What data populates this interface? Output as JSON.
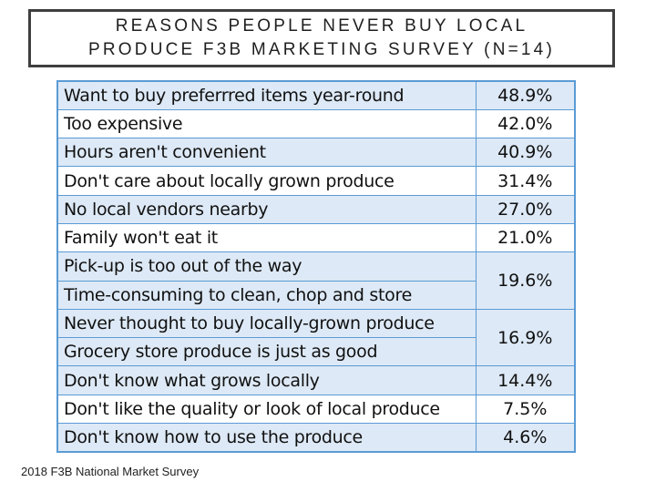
{
  "title": {
    "line1": "REASONS PEOPLE NEVER BUY LOCAL",
    "line2": "PRODUCE F3B MARKETING SURVEY (N=14)"
  },
  "rows": [
    {
      "reason": "Want to buy  preferrred items year-round",
      "pct": "48.9%"
    },
    {
      "reason": "Too expensive",
      "pct": "42.0%"
    },
    {
      "reason": "Hours aren't convenient",
      "pct": "40.9%"
    },
    {
      "reason": "Don't care about locally grown produce",
      "pct": "31.4%"
    },
    {
      "reason": "No local vendors nearby",
      "pct": "27.0%"
    },
    {
      "reason": "Family won't eat it",
      "pct": "21.0%"
    },
    {
      "reason": "Pick-up is too out of the way",
      "pct": "19.6%"
    },
    {
      "reason": "Time-consuming to clean, chop and store"
    },
    {
      "reason": "Never thought to buy locally-grown produce",
      "pct": "16.9%"
    },
    {
      "reason": "Grocery store produce is just as good"
    },
    {
      "reason": "Don't know what grows locally",
      "pct": "14.4%"
    },
    {
      "reason": "Don't like the quality or look of local produce",
      "pct": "7.5%"
    },
    {
      "reason": "Don't know how to use the produce",
      "pct": "4.6%"
    }
  ],
  "footnote": "2018 F3B National Market Survey",
  "colors": {
    "table_border": "#5b9bd5",
    "row_shade": "#dde9f6",
    "title_border": "#3f3f3f"
  }
}
